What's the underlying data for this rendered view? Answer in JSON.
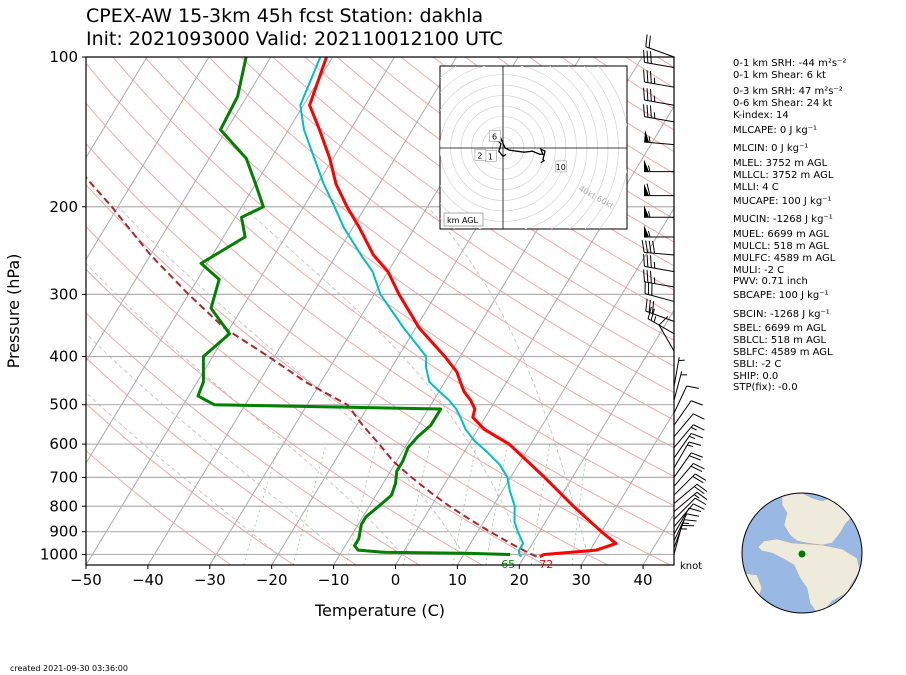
{
  "header": {
    "title_line1": "CPEX-AW 15-3km  45h fcst  Station: dakhla",
    "title_line2": "Init: 2021093000  Valid: 202110012100 UTC"
  },
  "footer": {
    "created": "created 2021-09-30 03:36:00"
  },
  "indices": [
    "0-1 km SRH: -44 m²s⁻²",
    "0-1 km Shear: 6 kt",
    "0-3 km SRH: 47 m²s⁻²",
    "0-6 km Shear: 24 kt",
    "K-index: 14",
    "MLCAPE: 0 J kg⁻¹",
    "MLCIN: 0 J kg⁻¹",
    "MLEL: 3752 m AGL",
    "MLLCL: 3752 m AGL",
    "MLLI: 4 C",
    "MUCAPE: 100 J kg⁻¹",
    "MUCIN: -1268 J kg⁻¹",
    "MUEL: 6699 m AGL",
    "MULCL: 518 m AGL",
    "MULFC: 4589 m AGL",
    "MULI: -2 C",
    "PWV: 0.71 inch",
    "SBCAPE: 100 J kg⁻¹",
    "SBCIN: -1268 J kg⁻¹",
    "SBEL: 6699 m AGL",
    "SBLCL: 518 m AGL",
    "SBLFC: 4589 m AGL",
    "SBLI: -2 C",
    "SHIP: 0.0",
    "STP(fix): -0.0"
  ],
  "chart_data": {
    "type": "skew-t",
    "xlabel": "Temperature (C)",
    "ylabel": "Pressure (hPa)",
    "xlim": [
      -50,
      45
    ],
    "ylim": [
      1050,
      100
    ],
    "x_ticks": [
      -50,
      -40,
      -30,
      -20,
      -10,
      0,
      10,
      20,
      30,
      40
    ],
    "y_ticks": [
      1000,
      900,
      800,
      700,
      600,
      500,
      400,
      300,
      200,
      100
    ],
    "grid": true,
    "surface_labels": {
      "dewpoint_f": "65",
      "temperature_f": "72"
    },
    "wind_unit_label": "knot",
    "colors": {
      "temperature": "#ff0000",
      "dewpoint": "#008000",
      "wetbulb": "#00bfbf",
      "parcel": "#a52a2a",
      "dry_adiabat": "#f4a8a8",
      "isotherm": "#aaaaaa"
    },
    "series": [
      {
        "name": "temperature",
        "p": [
          1010,
          1000,
          980,
          950,
          900,
          800,
          700,
          600,
          560,
          530,
          510,
          490,
          470,
          430,
          400,
          350,
          300,
          270,
          250,
          220,
          200,
          180,
          160,
          140,
          125,
          100
        ],
        "t": [
          22.5,
          23.0,
          31.0,
          33.5,
          30.0,
          23.0,
          15.5,
          6.5,
          1.0,
          -2.0,
          -2.5,
          -4.0,
          -6.0,
          -9.0,
          -12.5,
          -19.5,
          -26.0,
          -30.0,
          -34.0,
          -39.0,
          -43.0,
          -47.0,
          -50.5,
          -55.0,
          -59.0,
          -61.0
        ]
      },
      {
        "name": "dewpoint",
        "p": [
          1000,
          995,
          990,
          980,
          960,
          930,
          900,
          870,
          840,
          800,
          760,
          720,
          680,
          650,
          610,
          580,
          550,
          520,
          510,
          500,
          480,
          450,
          400,
          360,
          320,
          280,
          260,
          230,
          210,
          200,
          180,
          160,
          140,
          120,
          100
        ],
        "t": [
          17.5,
          11.0,
          -3.0,
          -7.5,
          -8.5,
          -8.5,
          -9.0,
          -9.5,
          -9.5,
          -8.5,
          -7.5,
          -8.0,
          -9.0,
          -9.0,
          -9.5,
          -9.0,
          -8.0,
          -8.0,
          -8.0,
          -45.0,
          -48.5,
          -49.0,
          -51.5,
          -49.5,
          -55.0,
          -56.5,
          -61.0,
          -56.5,
          -59.0,
          -56.5,
          -60.0,
          -64.0,
          -71.0,
          -71.5,
          -74.0
        ]
      },
      {
        "name": "wetbulb",
        "p": [
          1010,
          1000,
          980,
          950,
          900,
          860,
          800,
          740,
          700,
          660,
          620,
          590,
          560,
          530,
          510,
          490,
          470,
          450,
          420,
          400,
          350,
          300,
          270,
          250,
          220,
          200,
          180,
          160,
          140,
          125,
          100
        ],
        "t": [
          19.5,
          19.0,
          18.5,
          18.5,
          16.5,
          15.0,
          13.5,
          11.0,
          9.5,
          7.0,
          3.5,
          0.5,
          -2.0,
          -4.0,
          -5.5,
          -7.5,
          -10.0,
          -12.5,
          -14.5,
          -15.5,
          -22.0,
          -29.0,
          -32.5,
          -36.0,
          -41.5,
          -45.0,
          -49.0,
          -53.0,
          -57.5,
          -60.5,
          -62.0
        ]
      },
      {
        "name": "parcel",
        "p": [
          1010,
          1000,
          950,
          900,
          850,
          800,
          750,
          700,
          650,
          600,
          550,
          500,
          480,
          450,
          400,
          350,
          300,
          250,
          200,
          150,
          120,
          100
        ],
        "t": [
          22.0,
          21.0,
          16.5,
          12.0,
          7.5,
          3.0,
          -1.5,
          -6.0,
          -10.5,
          -14.5,
          -19.0,
          -23.5,
          -27.0,
          -32.5,
          -41.0,
          -51.0,
          -60.0,
          -70.0,
          -81.0,
          -96.0,
          -108.0,
          -117.0
        ]
      }
    ],
    "wind_barbs": [
      {
        "p": 1000,
        "dir": 15,
        "speed": 15
      },
      {
        "p": 970,
        "dir": 20,
        "speed": 15
      },
      {
        "p": 940,
        "dir": 25,
        "speed": 10
      },
      {
        "p": 910,
        "dir": 30,
        "speed": 10
      },
      {
        "p": 880,
        "dir": 40,
        "speed": 10
      },
      {
        "p": 850,
        "dir": 45,
        "speed": 10
      },
      {
        "p": 820,
        "dir": 50,
        "speed": 15
      },
      {
        "p": 790,
        "dir": 50,
        "speed": 20
      },
      {
        "p": 760,
        "dir": 45,
        "speed": 20
      },
      {
        "p": 730,
        "dir": 40,
        "speed": 20
      },
      {
        "p": 700,
        "dir": 35,
        "speed": 20
      },
      {
        "p": 670,
        "dir": 30,
        "speed": 15
      },
      {
        "p": 640,
        "dir": 35,
        "speed": 15
      },
      {
        "p": 610,
        "dir": 40,
        "speed": 15
      },
      {
        "p": 580,
        "dir": 40,
        "speed": 10
      },
      {
        "p": 550,
        "dir": 35,
        "speed": 10
      },
      {
        "p": 520,
        "dir": 25,
        "speed": 10
      },
      {
        "p": 490,
        "dir": 15,
        "speed": 5
      },
      {
        "p": 460,
        "dir": 10,
        "speed": 5
      },
      {
        "p": 390,
        "dir": 330,
        "speed": 10
      },
      {
        "p": 360,
        "dir": 300,
        "speed": 25
      },
      {
        "p": 340,
        "dir": 290,
        "speed": 30
      },
      {
        "p": 310,
        "dir": 285,
        "speed": 30
      },
      {
        "p": 290,
        "dir": 280,
        "speed": 35
      },
      {
        "p": 270,
        "dir": 280,
        "speed": 35
      },
      {
        "p": 250,
        "dir": 275,
        "speed": 40
      },
      {
        "p": 230,
        "dir": 270,
        "speed": 55
      },
      {
        "p": 210,
        "dir": 270,
        "speed": 55
      },
      {
        "p": 190,
        "dir": 270,
        "speed": 60
      },
      {
        "p": 170,
        "dir": 270,
        "speed": 55
      },
      {
        "p": 150,
        "dir": 275,
        "speed": 55
      },
      {
        "p": 135,
        "dir": 280,
        "speed": 35
      },
      {
        "p": 125,
        "dir": 280,
        "speed": 35
      },
      {
        "p": 115,
        "dir": 280,
        "speed": 35
      },
      {
        "p": 105,
        "dir": 280,
        "speed": 30
      },
      {
        "p": 100,
        "dir": 290,
        "speed": 20
      }
    ],
    "hodograph": {
      "title": "km AGL",
      "range_labels": [
        "40kt",
        "60kt"
      ],
      "height_labels": [
        "1",
        "2",
        "6",
        "10"
      ],
      "u": [
        3,
        0,
        -4,
        -3,
        -2,
        -4,
        -2,
        2,
        6,
        20,
        28,
        35,
        38,
        36,
        40,
        38,
        39,
        36
      ],
      "v": [
        -6,
        -8,
        -3,
        0,
        4,
        6,
        9,
        0,
        -2,
        -4,
        -3,
        -6,
        -6,
        -1,
        -3,
        -11,
        -12,
        -14
      ]
    },
    "inset_globe": {
      "station_marker": "dakhla"
    }
  }
}
